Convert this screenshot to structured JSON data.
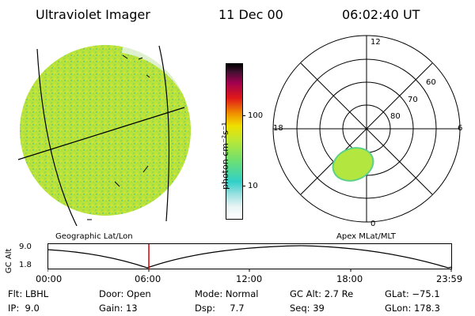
{
  "header": {
    "instrument": "Ultraviolet Imager",
    "date": "11 Dec 00",
    "time": "06:02:40 UT"
  },
  "colorbar": {
    "unit_label": "photon cm⁻²s⁻¹",
    "ticks": [
      "100",
      "10"
    ]
  },
  "polar_plot": {
    "mlt_labels": [
      "12",
      "18",
      "6",
      "0"
    ],
    "mlat_labels": [
      "60",
      "70",
      "80"
    ]
  },
  "timeline": {
    "left_caption": "Geographic Lat/Lon",
    "right_caption": "Apex MLat/MLT",
    "axis_title": "GC Alt",
    "y_ticks": [
      "9.0",
      "1.8"
    ],
    "time_labels": [
      "00:00",
      "06:00",
      "12:00",
      "18:00",
      "23:59"
    ],
    "current_time_fraction": 0.251
  },
  "info_panel": {
    "rows": [
      [
        "Flt: LBHL",
        "Door: Open",
        "Mode: Normal",
        "GC Alt: 2.7 Re",
        "GLat: −75.1"
      ],
      [
        "IP:  9.0",
        "Gain: 13",
        "Dsp:     7.7",
        "Seq: 39",
        "GLon: 178.3"
      ]
    ]
  },
  "colors": {
    "disk_fill": "#b7e23b",
    "oval_fill": "#b4e640",
    "marker_line": "#d00000",
    "colorbar_stops": [
      "#e8f4f4",
      "#99e0e0",
      "#30d0c8",
      "#70e070",
      "#b8e838",
      "#f0e000",
      "#f09000",
      "#e01818",
      "#a00050",
      "#000000"
    ]
  }
}
